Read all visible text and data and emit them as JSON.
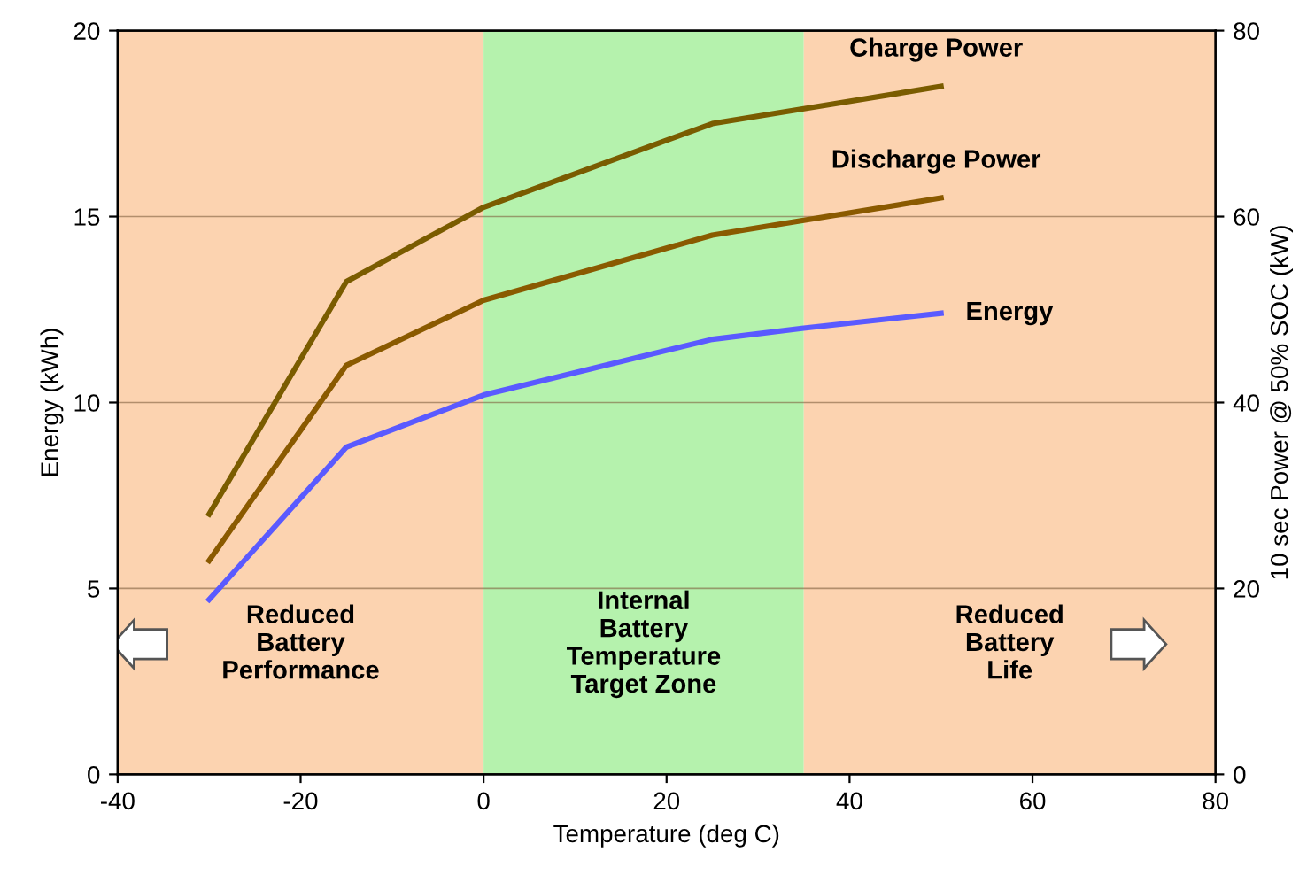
{
  "chart_data": {
    "type": "line",
    "xlabel": "Temperature (deg C)",
    "ylabel": "Energy (kWh)",
    "y2label": "10 sec Power @ 50% SOC (kW)",
    "x": [
      -30,
      -15,
      0,
      25,
      35,
      50
    ],
    "series": [
      {
        "name": "Charge Power",
        "color": "#7a5c00",
        "axis": "y2",
        "values": [
          28,
          53,
          61,
          70,
          71.6,
          74
        ]
      },
      {
        "name": "Discharge Power",
        "color": "#8a5a00",
        "axis": "y2",
        "values": [
          23,
          44,
          51,
          58,
          59.6,
          62
        ]
      },
      {
        "name": "Energy",
        "color": "#5a5aff",
        "values": [
          4.7,
          8.8,
          10.2,
          11.7,
          12,
          12.4
        ]
      }
    ],
    "xlim": [
      -40,
      80
    ],
    "xticks": [
      -40,
      -20,
      0,
      20,
      40,
      60,
      80
    ],
    "ylim": [
      0,
      20
    ],
    "yticks": [
      0,
      5,
      10,
      15,
      20
    ],
    "y2lim": [
      0,
      80
    ],
    "y2ticks": [
      0,
      20,
      40,
      60,
      80
    ],
    "bands": [
      {
        "axis": "x",
        "from": -40,
        "to": 0,
        "label": "Reduced\nBattery\nPerformance",
        "color": "#fcd3b0"
      },
      {
        "axis": "x",
        "from": 0,
        "to": 35,
        "label": "Internal\nBattery\nTemperature\nTarget Zone",
        "color": "#b5f2ad"
      },
      {
        "axis": "x",
        "from": 35,
        "to": 80,
        "label": "Reduced\nBattery\nLife",
        "color": "#fcd3b0"
      }
    ],
    "grid": "y",
    "legend": false,
    "marker": "none",
    "line_style": "solid"
  }
}
